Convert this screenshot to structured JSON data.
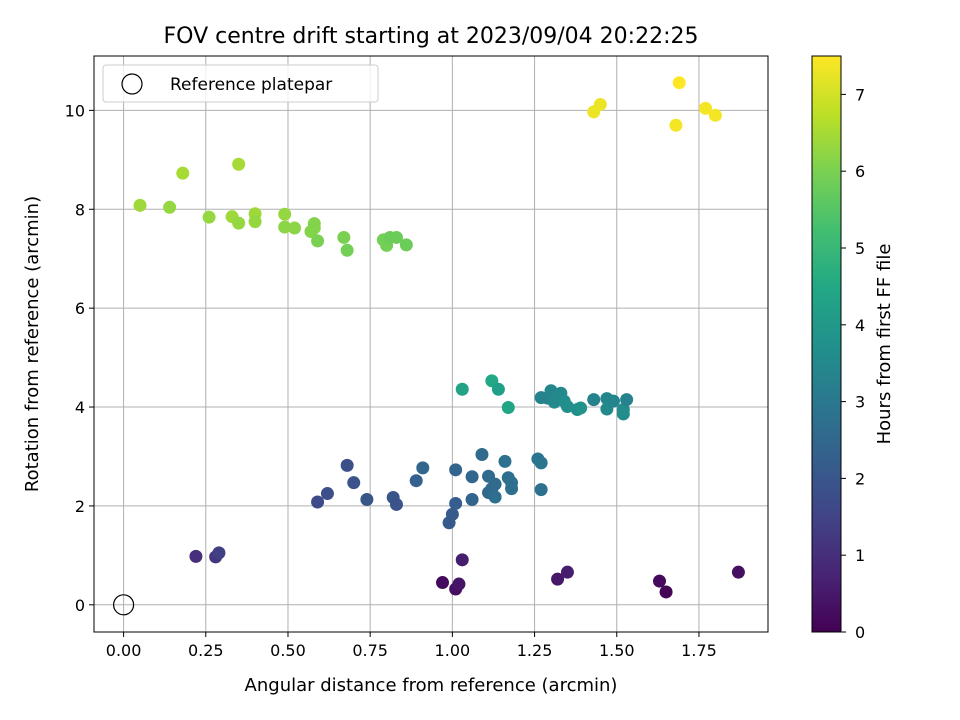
{
  "chart_data": {
    "type": "scatter",
    "title": "FOV centre drift starting at 2023/09/04 20:22:25",
    "xlabel": "Angular distance from reference (arcmin)",
    "ylabel": "Rotation from reference (arcmin)",
    "xlim": [
      -0.09,
      1.96
    ],
    "ylim": [
      -0.55,
      11.1
    ],
    "x_ticks": [
      0.0,
      0.25,
      0.5,
      0.75,
      1.0,
      1.25,
      1.5,
      1.75
    ],
    "x_tick_labels": [
      "0.00",
      "0.25",
      "0.50",
      "0.75",
      "1.00",
      "1.25",
      "1.50",
      "1.75"
    ],
    "y_ticks": [
      0,
      2,
      4,
      6,
      8,
      10
    ],
    "y_tick_labels": [
      "0",
      "2",
      "4",
      "6",
      "8",
      "10"
    ],
    "grid": true,
    "legend": {
      "placement": "top-left",
      "label": "Reference platepar"
    },
    "colorbar": {
      "label": "Hours from first FF file",
      "colormap": "viridis",
      "range": [
        0,
        7.5
      ],
      "ticks": [
        0,
        1,
        2,
        3,
        4,
        5,
        6,
        7
      ],
      "tick_labels": [
        "0",
        "1",
        "2",
        "3",
        "4",
        "5",
        "6",
        "7"
      ]
    },
    "reference_point": {
      "x": 0.0,
      "y": 0.0
    },
    "points": [
      {
        "x": 0.97,
        "y": 0.45,
        "t": 0.2
      },
      {
        "x": 1.01,
        "y": 0.32,
        "t": 0.3
      },
      {
        "x": 1.02,
        "y": 0.42,
        "t": 0.4
      },
      {
        "x": 1.03,
        "y": 0.91,
        "t": 0.6
      },
      {
        "x": 1.32,
        "y": 0.52,
        "t": 0.5
      },
      {
        "x": 1.35,
        "y": 0.66,
        "t": 0.6
      },
      {
        "x": 1.63,
        "y": 0.48,
        "t": 0.2
      },
      {
        "x": 1.65,
        "y": 0.26,
        "t": 0.1
      },
      {
        "x": 1.87,
        "y": 0.66,
        "t": 0.3
      },
      {
        "x": 0.22,
        "y": 0.98,
        "t": 1.0
      },
      {
        "x": 0.28,
        "y": 0.97,
        "t": 1.2
      },
      {
        "x": 0.29,
        "y": 1.05,
        "t": 1.4
      },
      {
        "x": 0.59,
        "y": 2.08,
        "t": 1.7
      },
      {
        "x": 0.62,
        "y": 2.25,
        "t": 1.8
      },
      {
        "x": 0.68,
        "y": 2.82,
        "t": 1.8
      },
      {
        "x": 0.7,
        "y": 2.47,
        "t": 1.9
      },
      {
        "x": 0.74,
        "y": 2.13,
        "t": 2.0
      },
      {
        "x": 0.82,
        "y": 2.17,
        "t": 2.0
      },
      {
        "x": 0.83,
        "y": 2.03,
        "t": 1.9
      },
      {
        "x": 0.89,
        "y": 2.51,
        "t": 2.3
      },
      {
        "x": 0.91,
        "y": 2.77,
        "t": 2.5
      },
      {
        "x": 0.99,
        "y": 1.66,
        "t": 2.1
      },
      {
        "x": 1.0,
        "y": 1.83,
        "t": 2.1
      },
      {
        "x": 1.01,
        "y": 2.05,
        "t": 2.2
      },
      {
        "x": 1.01,
        "y": 2.73,
        "t": 2.4
      },
      {
        "x": 1.06,
        "y": 2.59,
        "t": 2.5
      },
      {
        "x": 1.06,
        "y": 2.13,
        "t": 2.4
      },
      {
        "x": 1.09,
        "y": 3.04,
        "t": 2.6
      },
      {
        "x": 1.11,
        "y": 2.6,
        "t": 2.6
      },
      {
        "x": 1.11,
        "y": 2.27,
        "t": 2.5
      },
      {
        "x": 1.12,
        "y": 2.35,
        "t": 2.6
      },
      {
        "x": 1.13,
        "y": 2.44,
        "t": 2.6
      },
      {
        "x": 1.13,
        "y": 2.18,
        "t": 2.7
      },
      {
        "x": 1.16,
        "y": 2.9,
        "t": 2.8
      },
      {
        "x": 1.17,
        "y": 2.57,
        "t": 2.7
      },
      {
        "x": 1.18,
        "y": 2.47,
        "t": 2.8
      },
      {
        "x": 1.18,
        "y": 2.35,
        "t": 2.7
      },
      {
        "x": 1.26,
        "y": 2.95,
        "t": 2.9
      },
      {
        "x": 1.27,
        "y": 2.87,
        "t": 2.9
      },
      {
        "x": 1.27,
        "y": 2.33,
        "t": 2.8
      },
      {
        "x": 1.03,
        "y": 4.36,
        "t": 4.3
      },
      {
        "x": 1.12,
        "y": 4.53,
        "t": 4.5
      },
      {
        "x": 1.14,
        "y": 4.36,
        "t": 4.2
      },
      {
        "x": 1.17,
        "y": 3.99,
        "t": 4.4
      },
      {
        "x": 1.27,
        "y": 4.19,
        "t": 3.3
      },
      {
        "x": 1.29,
        "y": 4.18,
        "t": 3.3
      },
      {
        "x": 1.3,
        "y": 4.33,
        "t": 3.4
      },
      {
        "x": 1.31,
        "y": 4.1,
        "t": 3.6
      },
      {
        "x": 1.31,
        "y": 4.16,
        "t": 3.5
      },
      {
        "x": 1.33,
        "y": 4.28,
        "t": 3.5
      },
      {
        "x": 1.34,
        "y": 4.12,
        "t": 3.6
      },
      {
        "x": 1.35,
        "y": 4.01,
        "t": 3.7
      },
      {
        "x": 1.38,
        "y": 3.95,
        "t": 3.7
      },
      {
        "x": 1.39,
        "y": 3.98,
        "t": 3.8
      },
      {
        "x": 1.43,
        "y": 4.15,
        "t": 3.3
      },
      {
        "x": 1.47,
        "y": 4.17,
        "t": 3.4
      },
      {
        "x": 1.47,
        "y": 3.96,
        "t": 3.5
      },
      {
        "x": 1.49,
        "y": 4.12,
        "t": 3.4
      },
      {
        "x": 1.52,
        "y": 3.86,
        "t": 3.6
      },
      {
        "x": 1.52,
        "y": 3.95,
        "t": 3.6
      },
      {
        "x": 1.53,
        "y": 4.15,
        "t": 3.3
      },
      {
        "x": 0.05,
        "y": 8.08,
        "t": 6.4
      },
      {
        "x": 0.14,
        "y": 8.04,
        "t": 6.3
      },
      {
        "x": 0.18,
        "y": 8.73,
        "t": 6.5
      },
      {
        "x": 0.26,
        "y": 7.84,
        "t": 6.3
      },
      {
        "x": 0.33,
        "y": 7.85,
        "t": 6.4
      },
      {
        "x": 0.35,
        "y": 7.72,
        "t": 6.3
      },
      {
        "x": 0.35,
        "y": 8.91,
        "t": 6.5
      },
      {
        "x": 0.4,
        "y": 7.91,
        "t": 6.4
      },
      {
        "x": 0.4,
        "y": 7.75,
        "t": 6.3
      },
      {
        "x": 0.49,
        "y": 7.9,
        "t": 6.3
      },
      {
        "x": 0.49,
        "y": 7.64,
        "t": 6.2
      },
      {
        "x": 0.52,
        "y": 7.62,
        "t": 6.2
      },
      {
        "x": 0.57,
        "y": 7.55,
        "t": 6.1
      },
      {
        "x": 0.58,
        "y": 7.71,
        "t": 6.1
      },
      {
        "x": 0.58,
        "y": 7.62,
        "t": 6.1
      },
      {
        "x": 0.59,
        "y": 7.36,
        "t": 6.0
      },
      {
        "x": 0.67,
        "y": 7.43,
        "t": 6.0
      },
      {
        "x": 0.68,
        "y": 7.17,
        "t": 5.9
      },
      {
        "x": 0.79,
        "y": 7.38,
        "t": 5.9
      },
      {
        "x": 0.8,
        "y": 7.27,
        "t": 5.9
      },
      {
        "x": 0.81,
        "y": 7.43,
        "t": 5.8
      },
      {
        "x": 0.83,
        "y": 7.43,
        "t": 5.8
      },
      {
        "x": 0.86,
        "y": 7.28,
        "t": 5.8
      },
      {
        "x": 1.43,
        "y": 9.97,
        "t": 7.3
      },
      {
        "x": 1.45,
        "y": 10.12,
        "t": 7.3
      },
      {
        "x": 1.68,
        "y": 9.7,
        "t": 7.4
      },
      {
        "x": 1.69,
        "y": 10.56,
        "t": 7.5
      },
      {
        "x": 1.77,
        "y": 10.04,
        "t": 7.4
      },
      {
        "x": 1.8,
        "y": 9.9,
        "t": 7.4
      }
    ]
  }
}
